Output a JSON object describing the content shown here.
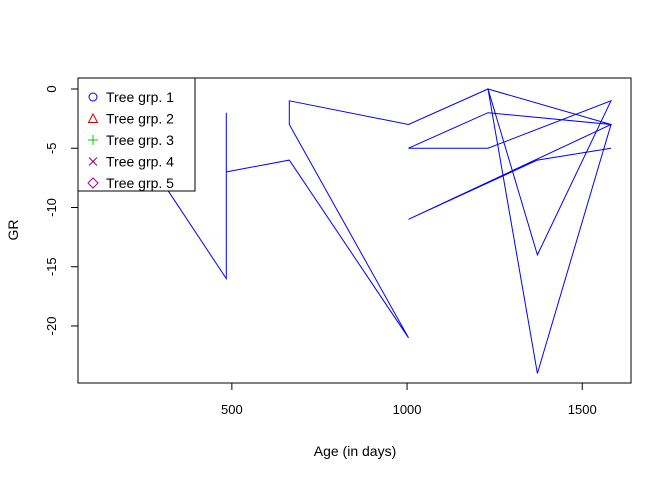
{
  "chart_data": {
    "type": "line",
    "title": "",
    "xlabel": "Age (in days)",
    "ylabel": "GR",
    "xlim": [
      118,
      1582
    ],
    "ylim": [
      -23.8,
      0
    ],
    "x_ticks": [
      500,
      1000,
      1500
    ],
    "y_ticks": [
      0,
      -5,
      -10,
      -15,
      -20
    ],
    "grid": false,
    "legend_position": "top-left",
    "series": [
      {
        "name": "Tree grp. 1",
        "color": "#0000ff",
        "marker": "circle",
        "x": [
          118,
          305,
          484,
          484,
          484,
          664,
          1004,
          664,
          664,
          1004,
          1231,
          1372,
          1582,
          1231,
          1004,
          1231,
          1582,
          1372,
          1231,
          1582,
          1004,
          1372,
          1582
        ],
        "y": [
          -8,
          -8,
          -16,
          -2,
          -7,
          -6,
          -21,
          -3,
          -1,
          -3,
          0,
          -14,
          -1,
          -5,
          -5,
          -2,
          -3,
          -24,
          0,
          -3,
          -11,
          -6,
          -5
        ]
      },
      {
        "name": "Tree grp. 2",
        "color": "#cc0000",
        "marker": "triangle",
        "x": [],
        "y": []
      },
      {
        "name": "Tree grp. 3",
        "color": "#00cc00",
        "marker": "plus",
        "x": [],
        "y": []
      },
      {
        "name": "Tree grp. 4",
        "color": "#a0004a",
        "marker": "cross",
        "x": [],
        "y": []
      },
      {
        "name": "Tree grp. 5",
        "color": "#a000a0",
        "marker": "diamond",
        "x": [],
        "y": []
      }
    ]
  }
}
